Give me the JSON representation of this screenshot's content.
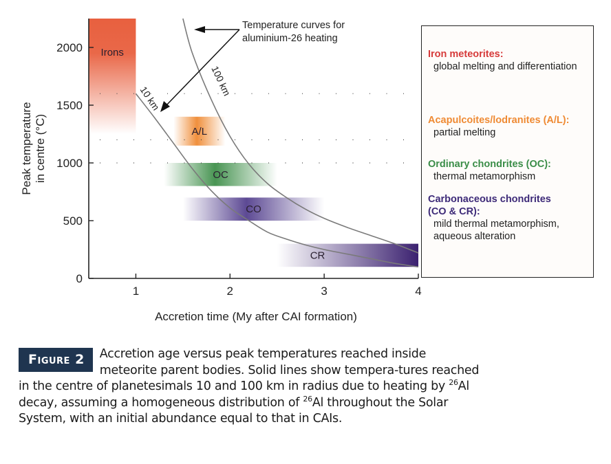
{
  "chart_data": {
    "type": "area",
    "title": "",
    "xlabel": "Accretion time (My after CAI formation)",
    "ylabel_lines": [
      "Peak temperature",
      "in centre (°C)"
    ],
    "xlim": [
      0.5,
      4
    ],
    "ylim": [
      0,
      2250
    ],
    "xticks": [
      1,
      2,
      3,
      4
    ],
    "xtick_labels": [
      "1",
      "2",
      "3",
      "4"
    ],
    "yticks": [
      0,
      500,
      1000,
      1500,
      2000
    ],
    "ytick_labels": [
      "0",
      "500",
      "1000",
      "1500",
      "2000"
    ],
    "dotted_gridlines_y": [
      1000,
      1200,
      1600
    ],
    "bands": [
      {
        "name": "Irons",
        "label": "Irons",
        "x": [
          0.5,
          1.0
        ],
        "y": [
          1250,
          2250
        ],
        "color": "#e8603f",
        "gradient": "vertical-fade-down"
      },
      {
        "name": "A/L",
        "label": "A/L",
        "x": [
          1.4,
          1.95
        ],
        "y": [
          1150,
          1400
        ],
        "color": "#ef8a33",
        "gradient": "center-peak"
      },
      {
        "name": "OC",
        "label": "OC",
        "x": [
          1.3,
          2.5
        ],
        "y": [
          800,
          1000
        ],
        "color": "#3f8f4a",
        "gradient": "center-peak"
      },
      {
        "name": "CO",
        "label": "CO",
        "x": [
          1.5,
          3.0
        ],
        "y": [
          500,
          700
        ],
        "color": "#54408e",
        "gradient": "center-peak"
      },
      {
        "name": "CR",
        "label": "CR",
        "x": [
          2.5,
          4.0
        ],
        "y": [
          100,
          300
        ],
        "color": "#3b2170",
        "gradient": "fade-left"
      }
    ],
    "series": [
      {
        "name": "10 km",
        "label": "10 km",
        "x": [
          1.0,
          1.2,
          1.4,
          1.6,
          1.8,
          2.0,
          2.2,
          2.4,
          2.6,
          2.8,
          3.0,
          3.25,
          3.5,
          3.75,
          4.0
        ],
        "y": [
          1600,
          1390,
          1170,
          950,
          760,
          610,
          500,
          400,
          340,
          290,
          250,
          210,
          170,
          130,
          100
        ]
      },
      {
        "name": "100 km",
        "label": "100 km",
        "x": [
          1.5,
          1.6,
          1.8,
          2.0,
          2.2,
          2.4,
          2.6,
          2.8,
          3.0,
          3.25,
          3.5,
          3.75,
          4.0
        ],
        "y": [
          2250,
          1950,
          1550,
          1230,
          990,
          820,
          700,
          600,
          520,
          440,
          370,
          300,
          220
        ]
      }
    ],
    "annotations": [
      {
        "text_lines": [
          "Temperature curves for",
          "aluminium-26 heating"
        ]
      }
    ],
    "legend": {
      "placement": "right",
      "entries": [
        {
          "title": "Iron meteorites:",
          "desc": [
            "global melting and differentiation"
          ],
          "color": "#d63a3a"
        },
        {
          "title": "Acapulcoites/lodranites (A/L):",
          "desc": [
            "partial melting"
          ],
          "color": "#ef8a33"
        },
        {
          "title": "Ordinary chondrites (OC):",
          "desc": [
            "thermal metamorphism"
          ],
          "color": "#3a8d48"
        },
        {
          "title_lines": [
            "Carbonaceous chondrites",
            "(CO & CR):"
          ],
          "desc": [
            "mild thermal metamorphism,",
            "aqueous alteration"
          ],
          "color": "#3d2a78"
        }
      ]
    }
  },
  "caption": {
    "badge_word": "Figure",
    "badge_number": "2",
    "text_before_sup1": "Accretion age versus peak temperatures reached inside meteorite parent bodies. Solid lines show tempera-tures reached in the centre of planetesimals 10 and 100 km in radius due to heating by ",
    "sup1": "26",
    "text_between": "Al decay, assuming a homogeneous distribution of ",
    "sup2": "26",
    "text_after": "Al throughout the Solar System, with an initial abundance equal to that in CAIs."
  }
}
